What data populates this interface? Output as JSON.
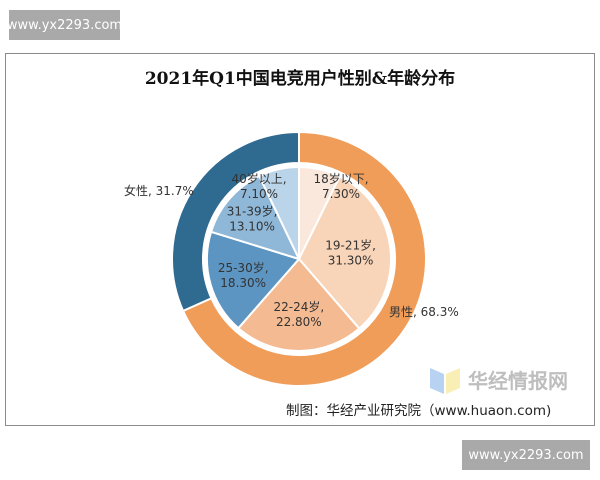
{
  "watermark": "www.yx2293.com",
  "source": "制图：华经产业研究院（www.huaon.com)",
  "logo_text": "华经情报网",
  "chart_data": {
    "type": "pie",
    "subtype": "nested-donut",
    "title": "2021年Q1中国电竞用户性别&年龄分布",
    "start_angle_deg": 0,
    "direction": "clockwise",
    "outer": [
      {
        "label": "男性",
        "value": 68.3,
        "text": "男性, 68.3%",
        "color": "#F09D5A"
      },
      {
        "label": "女性",
        "value": 31.7,
        "text": "女性, 31.7%",
        "color": "#2F6A91"
      }
    ],
    "inner": [
      {
        "label": "18岁以下",
        "value": 7.3,
        "text1": "18岁以下,",
        "text2": "7.30%",
        "color": "#FBE8DC"
      },
      {
        "label": "19-21岁",
        "value": 31.3,
        "text1": "19-21岁,",
        "text2": "31.30%",
        "color": "#F8D4B8"
      },
      {
        "label": "22-24岁",
        "value": 22.8,
        "text1": "22-24岁,",
        "text2": "22.80%",
        "color": "#F4BA92"
      },
      {
        "label": "25-30岁",
        "value": 18.3,
        "text1": "25-30岁,",
        "text2": "18.30%",
        "color": "#5D95C2"
      },
      {
        "label": "31-39岁",
        "value": 13.1,
        "text1": "31-39岁,",
        "text2": "13.10%",
        "color": "#8FB7D8"
      },
      {
        "label": "40岁以上",
        "value": 7.1,
        "text1": "40岁以上,",
        "text2": "7.10%",
        "color": "#BAD4EA"
      }
    ]
  }
}
